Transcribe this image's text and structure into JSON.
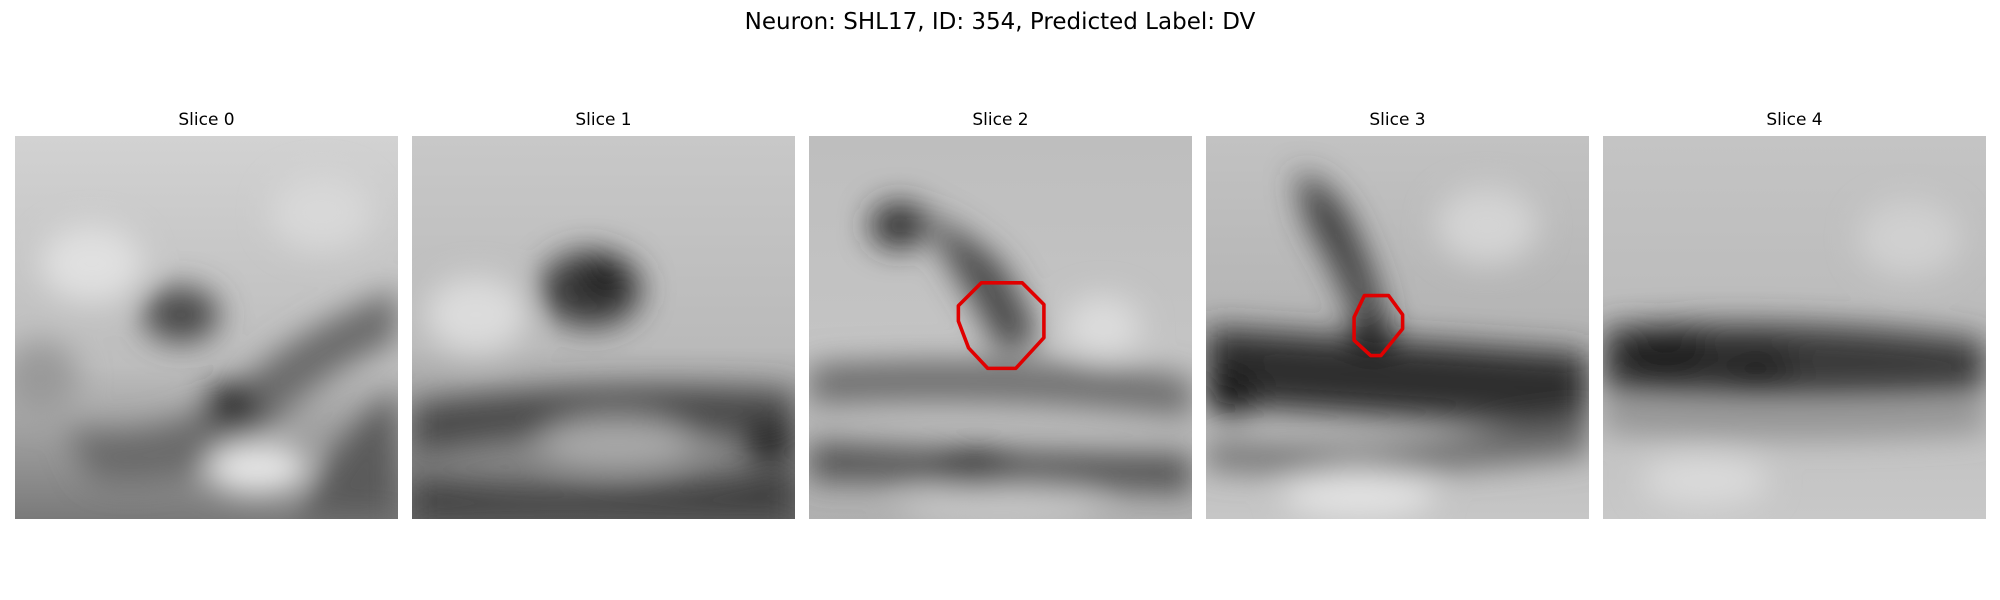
{
  "figure": {
    "title": "Neuron: SHL17, ID: 354, Predicted Label: DV"
  },
  "colors": {
    "outline": "#e00000"
  },
  "panels": [
    {
      "title": "Slice 0"
    },
    {
      "title": "Slice 1"
    },
    {
      "title": "Slice 2"
    },
    {
      "title": "Slice 3"
    },
    {
      "title": "Slice 4"
    }
  ]
}
